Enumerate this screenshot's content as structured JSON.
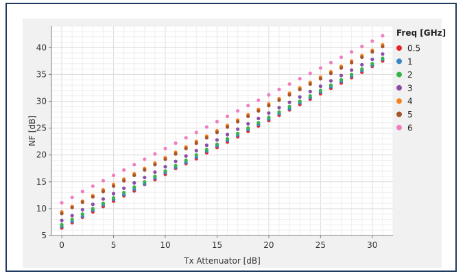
{
  "chart_data": {
    "type": "scatter",
    "xlabel": "Tx Attenuator [dB]",
    "ylabel": "NF [dB]",
    "xlim": [
      -1,
      32
    ],
    "ylim": [
      5,
      44
    ],
    "xticks": [
      0,
      5,
      10,
      15,
      20,
      25,
      30
    ],
    "yticks": [
      5,
      10,
      15,
      20,
      25,
      30,
      35,
      40
    ],
    "grid": true,
    "legend_title": "Freq [GHz]",
    "legend_position": "right",
    "x": [
      0,
      1,
      2,
      3,
      4,
      5,
      6,
      7,
      8,
      9,
      10,
      11,
      12,
      13,
      14,
      15,
      16,
      17,
      18,
      19,
      20,
      21,
      22,
      23,
      24,
      25,
      26,
      27,
      28,
      29,
      30,
      31
    ],
    "series": [
      {
        "name": "0.5",
        "color": "#e8252b",
        "values": [
          6.4,
          7.4,
          8.4,
          9.4,
          10.4,
          11.4,
          12.4,
          13.3,
          14.5,
          15.4,
          16.4,
          17.5,
          18.4,
          19.3,
          20.4,
          21.4,
          22.4,
          23.4,
          24.4,
          25.4,
          26.4,
          27.4,
          28.4,
          29.4,
          30.4,
          31.4,
          32.4,
          33.4,
          34.4,
          35.4,
          36.5,
          37.5
        ]
      },
      {
        "name": "1",
        "color": "#3a85c8",
        "values": [
          6.7,
          7.6,
          8.6,
          9.7,
          10.7,
          11.7,
          12.6,
          13.6,
          14.6,
          15.7,
          16.7,
          17.7,
          18.6,
          19.6,
          20.7,
          21.7,
          22.7,
          23.7,
          24.7,
          25.7,
          26.7,
          27.7,
          28.6,
          29.7,
          30.7,
          31.7,
          32.7,
          33.7,
          34.7,
          35.7,
          36.7,
          37.8
        ]
      },
      {
        "name": "2",
        "color": "#3ab24a",
        "values": [
          7.0,
          8.0,
          9.0,
          10.0,
          11.0,
          12.0,
          13.0,
          14.0,
          15.0,
          16.0,
          17.0,
          18.0,
          19.0,
          20.0,
          21.0,
          22.0,
          23.0,
          24.0,
          25.0,
          26.0,
          27.0,
          28.0,
          29.0,
          30.0,
          31.0,
          32.0,
          33.0,
          34.0,
          35.0,
          36.0,
          37.0,
          38.0
        ]
      },
      {
        "name": "3",
        "color": "#8a4ea6",
        "values": [
          7.8,
          8.7,
          9.8,
          10.8,
          11.8,
          12.8,
          13.8,
          14.8,
          15.8,
          16.8,
          17.8,
          18.8,
          19.8,
          20.8,
          21.8,
          22.8,
          23.8,
          24.8,
          25.8,
          26.8,
          27.8,
          28.8,
          29.8,
          30.8,
          31.8,
          32.8,
          33.8,
          34.8,
          35.8,
          36.8,
          37.8,
          38.8
        ]
      },
      {
        "name": "4",
        "color": "#f5821f",
        "values": [
          9.4,
          10.4,
          11.4,
          12.4,
          13.5,
          14.5,
          15.5,
          16.5,
          17.5,
          18.5,
          19.5,
          20.5,
          21.5,
          22.5,
          23.5,
          24.5,
          25.5,
          26.5,
          27.5,
          28.5,
          29.5,
          30.5,
          31.5,
          32.5,
          33.5,
          34.5,
          35.5,
          36.5,
          37.5,
          38.5,
          39.5,
          40.5
        ]
      },
      {
        "name": "5",
        "color": "#a4552a",
        "values": [
          9.1,
          10.2,
          11.2,
          12.2,
          13.2,
          14.2,
          15.2,
          16.2,
          17.2,
          18.2,
          19.2,
          20.2,
          21.2,
          22.2,
          23.2,
          24.2,
          25.2,
          26.2,
          27.2,
          28.2,
          29.2,
          30.2,
          31.2,
          32.2,
          33.2,
          34.2,
          35.2,
          36.2,
          37.2,
          38.2,
          39.2,
          40.2
        ]
      },
      {
        "name": "6",
        "color": "#f07fc0",
        "values": [
          11.1,
          12.1,
          13.2,
          14.2,
          15.2,
          16.2,
          17.2,
          18.2,
          19.2,
          20.2,
          21.2,
          22.2,
          23.2,
          24.2,
          25.2,
          26.2,
          27.2,
          28.2,
          29.2,
          30.2,
          31.2,
          32.2,
          33.2,
          34.2,
          35.2,
          36.2,
          37.2,
          38.2,
          39.2,
          40.2,
          41.2,
          42.2
        ]
      }
    ]
  }
}
